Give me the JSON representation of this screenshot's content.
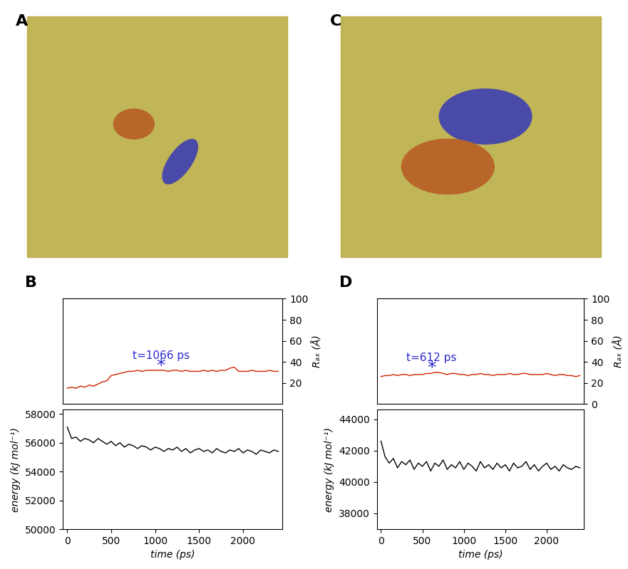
{
  "chart_data": [
    {
      "type": "image",
      "title": "A"
    },
    {
      "type": "image",
      "title": "C"
    },
    {
      "type": "line",
      "title": "B",
      "ylabel": "Rₐₓ (Å)",
      "color": "#cc2200",
      "x": [
        0,
        50,
        100,
        150,
        200,
        250,
        300,
        350,
        400,
        450,
        500,
        550,
        600,
        650,
        700,
        750,
        800,
        850,
        900,
        950,
        1000,
        1050,
        1100,
        1150,
        1200,
        1250,
        1300,
        1350,
        1400,
        1450,
        1500,
        1550,
        1600,
        1650,
        1700,
        1750,
        1800,
        1850,
        1900,
        1950,
        2000,
        2050,
        2100,
        2150,
        2200,
        2250,
        2300,
        2350,
        2400
      ],
      "values": [
        15,
        16,
        15,
        17,
        16,
        18,
        17,
        19,
        21,
        22,
        27,
        28,
        29,
        30,
        31,
        31,
        32,
        31,
        32,
        32,
        32,
        32,
        32,
        31,
        32,
        32,
        31,
        32,
        31,
        31,
        31,
        32,
        31,
        32,
        31,
        32,
        32,
        34,
        35,
        31,
        31,
        31,
        32,
        31,
        31,
        31,
        32,
        31,
        31
      ],
      "xlim": [
        -50,
        2450
      ],
      "ylim": [
        0,
        100
      ],
      "yticks": [
        20,
        40,
        60,
        80,
        100
      ],
      "tick_labels": "y",
      "annotations": [
        {
          "text": "t=1066 ps",
          "x": 1066,
          "y": 46
        },
        {
          "text": "*",
          "x": 1066,
          "y": 36
        }
      ]
    },
    {
      "type": "line",
      "ylabel": "energy (kJ mol⁻¹)",
      "xlabel": "time (ps)",
      "color": "#000000",
      "x": [
        0,
        50,
        100,
        150,
        200,
        250,
        300,
        350,
        400,
        450,
        500,
        550,
        600,
        650,
        700,
        750,
        800,
        850,
        900,
        950,
        1000,
        1050,
        1100,
        1150,
        1200,
        1250,
        1300,
        1350,
        1400,
        1450,
        1500,
        1550,
        1600,
        1650,
        1700,
        1750,
        1800,
        1850,
        1900,
        1950,
        2000,
        2050,
        2100,
        2150,
        2200,
        2250,
        2300,
        2350,
        2400
      ],
      "values": [
        57100,
        56300,
        56400,
        56100,
        56300,
        56200,
        56000,
        56300,
        56100,
        55900,
        56100,
        55800,
        56000,
        55700,
        55900,
        55800,
        55600,
        55800,
        55700,
        55500,
        55700,
        55600,
        55400,
        55600,
        55500,
        55700,
        55400,
        55600,
        55300,
        55500,
        55600,
        55400,
        55500,
        55300,
        55600,
        55400,
        55300,
        55500,
        55400,
        55600,
        55300,
        55500,
        55400,
        55200,
        55500,
        55400,
        55300,
        55500,
        55400
      ],
      "xlim": [
        -50,
        2450
      ],
      "xticks": [
        0,
        500,
        1000,
        1500,
        2000
      ],
      "ylim": [
        50000,
        58300
      ],
      "yticks": [
        50000,
        52000,
        54000,
        56000,
        58000
      ]
    },
    {
      "type": "line",
      "title": "D",
      "ylabel": "Rₐₓ (Å)",
      "color": "#cc2200",
      "x": [
        0,
        50,
        100,
        150,
        200,
        250,
        300,
        350,
        400,
        450,
        500,
        550,
        600,
        650,
        700,
        750,
        800,
        850,
        900,
        950,
        1000,
        1050,
        1100,
        1150,
        1200,
        1250,
        1300,
        1350,
        1400,
        1450,
        1500,
        1550,
        1600,
        1650,
        1700,
        1750,
        1800,
        1850,
        1900,
        1950,
        2000,
        2050,
        2100,
        2150,
        2200,
        2250,
        2300,
        2350,
        2400
      ],
      "values": [
        26,
        27,
        27,
        28,
        27,
        28,
        28,
        27,
        28,
        28,
        28,
        29,
        29,
        30,
        30,
        29,
        28,
        29,
        29,
        28,
        28,
        27,
        28,
        28,
        29,
        28,
        28,
        27,
        28,
        28,
        28,
        29,
        28,
        28,
        29,
        29,
        28,
        28,
        28,
        28,
        29,
        28,
        27,
        28,
        28,
        27,
        27,
        26,
        27
      ],
      "xlim": [
        -50,
        2450
      ],
      "ylim": [
        0,
        100
      ],
      "yticks": [
        0,
        20,
        40,
        60,
        80,
        100
      ],
      "tick_labels": "y",
      "annotations": [
        {
          "text": "t=612 ps",
          "x": 612,
          "y": 44
        },
        {
          "text": "*",
          "x": 612,
          "y": 34
        }
      ]
    },
    {
      "type": "line",
      "ylabel": "energy (kJ mol⁻¹)",
      "xlabel": "time (ps)",
      "color": "#000000",
      "x": [
        0,
        50,
        100,
        150,
        200,
        250,
        300,
        350,
        400,
        450,
        500,
        550,
        600,
        650,
        700,
        750,
        800,
        850,
        900,
        950,
        1000,
        1050,
        1100,
        1150,
        1200,
        1250,
        1300,
        1350,
        1400,
        1450,
        1500,
        1550,
        1600,
        1650,
        1700,
        1750,
        1800,
        1850,
        1900,
        1950,
        2000,
        2050,
        2100,
        2150,
        2200,
        2250,
        2300,
        2350,
        2400
      ],
      "values": [
        42600,
        41600,
        41200,
        41500,
        40900,
        41300,
        41100,
        41400,
        40800,
        41200,
        41000,
        41300,
        40700,
        41200,
        41000,
        41400,
        40800,
        41100,
        40900,
        41300,
        40800,
        41200,
        41000,
        40700,
        41300,
        40900,
        41100,
        40800,
        41200,
        40900,
        41100,
        40700,
        41200,
        40900,
        41000,
        41300,
        40800,
        41100,
        40700,
        41000,
        41200,
        40800,
        41000,
        40700,
        41100,
        40900,
        40800,
        41000,
        40900
      ],
      "xlim": [
        -50,
        2450
      ],
      "xticks": [
        0,
        500,
        1000,
        1500,
        2000
      ],
      "ylim": [
        37000,
        44600
      ],
      "yticks": [
        38000,
        40000,
        42000,
        44000
      ]
    }
  ]
}
